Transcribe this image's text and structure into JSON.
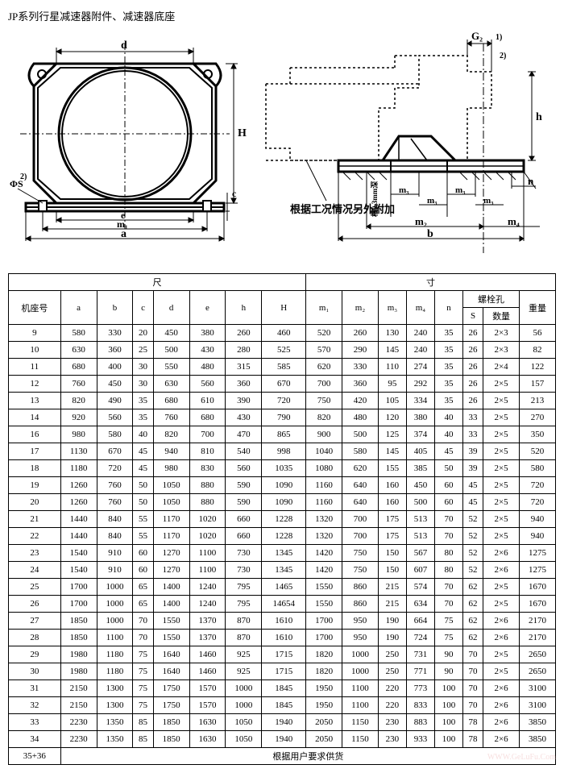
{
  "title": "JP系列行星减速器附件、减速器底座",
  "diagram_left": {
    "labels": {
      "d": "d",
      "H": "H",
      "c": "c",
      "e": "e",
      "m1": "m₁",
      "a": "a",
      "phi_s": "ΦS",
      "note2": "2)"
    },
    "dim_font": 13
  },
  "diagram_right": {
    "labels": {
      "G2": "G₂",
      "note1": "1)",
      "note2": "2)",
      "h": "h",
      "n": "n",
      "m3": "m₃",
      "m2": "m₂",
      "m4": "m₄",
      "b": "b",
      "cao": "槽0.3mm深",
      "annotation": "根据工况情况另外附加"
    },
    "dim_font": 13
  },
  "table": {
    "header_main": "尺",
    "header_main2": "寸",
    "cols": [
      "机座号",
      "a",
      "b",
      "c",
      "d",
      "e",
      "h",
      "H",
      "m₁",
      "m₂",
      "m₃",
      "m₄",
      "n",
      "S",
      "数量",
      "重量"
    ],
    "bolt_header": "螺栓孔",
    "groups": [
      [
        [
          "9",
          "580",
          "330",
          "20",
          "450",
          "380",
          "260",
          "460",
          "520",
          "260",
          "130",
          "240",
          "35",
          "26",
          "2×3",
          "56"
        ],
        [
          "10",
          "630",
          "360",
          "25",
          "500",
          "430",
          "280",
          "525",
          "570",
          "290",
          "145",
          "240",
          "35",
          "26",
          "2×3",
          "82"
        ],
        [
          "11",
          "680",
          "400",
          "30",
          "550",
          "480",
          "315",
          "585",
          "620",
          "330",
          "110",
          "274",
          "35",
          "26",
          "2×4",
          "122"
        ]
      ],
      [
        [
          "12",
          "760",
          "450",
          "30",
          "630",
          "560",
          "360",
          "670",
          "700",
          "360",
          "95",
          "292",
          "35",
          "26",
          "2×5",
          "157"
        ],
        [
          "13",
          "820",
          "490",
          "35",
          "680",
          "610",
          "390",
          "720",
          "750",
          "420",
          "105",
          "334",
          "35",
          "26",
          "2×5",
          "213"
        ],
        [
          "14",
          "920",
          "560",
          "35",
          "760",
          "680",
          "430",
          "790",
          "820",
          "480",
          "120",
          "380",
          "40",
          "33",
          "2×5",
          "270"
        ]
      ],
      [
        [
          "16",
          "980",
          "580",
          "40",
          "820",
          "700",
          "470",
          "865",
          "900",
          "500",
          "125",
          "374",
          "40",
          "33",
          "2×5",
          "350"
        ],
        [
          "17",
          "1130",
          "670",
          "45",
          "940",
          "810",
          "540",
          "998",
          "1040",
          "580",
          "145",
          "405",
          "45",
          "39",
          "2×5",
          "520"
        ],
        [
          "18",
          "1180",
          "720",
          "45",
          "980",
          "830",
          "560",
          "1035",
          "1080",
          "620",
          "155",
          "385",
          "50",
          "39",
          "2×5",
          "580"
        ]
      ],
      [
        [
          "19",
          "1260",
          "760",
          "50",
          "1050",
          "880",
          "590",
          "1090",
          "1160",
          "640",
          "160",
          "450",
          "60",
          "45",
          "2×5",
          "720"
        ],
        [
          "20",
          "1260",
          "760",
          "50",
          "1050",
          "880",
          "590",
          "1090",
          "1160",
          "640",
          "160",
          "500",
          "60",
          "45",
          "2×5",
          "720"
        ],
        [
          "21",
          "1440",
          "840",
          "55",
          "1170",
          "1020",
          "660",
          "1228",
          "1320",
          "700",
          "175",
          "513",
          "70",
          "52",
          "2×5",
          "940"
        ]
      ],
      [
        [
          "22",
          "1440",
          "840",
          "55",
          "1170",
          "1020",
          "660",
          "1228",
          "1320",
          "700",
          "175",
          "513",
          "70",
          "52",
          "2×5",
          "940"
        ],
        [
          "23",
          "1540",
          "910",
          "60",
          "1270",
          "1100",
          "730",
          "1345",
          "1420",
          "750",
          "150",
          "567",
          "80",
          "52",
          "2×6",
          "1275"
        ],
        [
          "24",
          "1540",
          "910",
          "60",
          "1270",
          "1100",
          "730",
          "1345",
          "1420",
          "750",
          "150",
          "607",
          "80",
          "52",
          "2×6",
          "1275"
        ]
      ],
      [
        [
          "25",
          "1700",
          "1000",
          "65",
          "1400",
          "1240",
          "795",
          "1465",
          "1550",
          "860",
          "215",
          "574",
          "70",
          "62",
          "2×5",
          "1670"
        ],
        [
          "26",
          "1700",
          "1000",
          "65",
          "1400",
          "1240",
          "795",
          "14654",
          "1550",
          "860",
          "215",
          "634",
          "70",
          "62",
          "2×5",
          "1670"
        ],
        [
          "27",
          "1850",
          "1000",
          "70",
          "1550",
          "1370",
          "870",
          "1610",
          "1700",
          "950",
          "190",
          "664",
          "75",
          "62",
          "2×6",
          "2170"
        ]
      ],
      [
        [
          "28",
          "1850",
          "1100",
          "70",
          "1550",
          "1370",
          "870",
          "1610",
          "1700",
          "950",
          "190",
          "724",
          "75",
          "62",
          "2×6",
          "2170"
        ],
        [
          "29",
          "1980",
          "1180",
          "75",
          "1640",
          "1460",
          "925",
          "1715",
          "1820",
          "1000",
          "250",
          "731",
          "90",
          "70",
          "2×5",
          "2650"
        ],
        [
          "30",
          "1980",
          "1180",
          "75",
          "1640",
          "1460",
          "925",
          "1715",
          "1820",
          "1000",
          "250",
          "771",
          "90",
          "70",
          "2×5",
          "2650"
        ]
      ],
      [
        [
          "31",
          "2150",
          "1300",
          "75",
          "1750",
          "1570",
          "1000",
          "1845",
          "1950",
          "1100",
          "220",
          "773",
          "100",
          "70",
          "2×6",
          "3100"
        ],
        [
          "32",
          "2150",
          "1300",
          "75",
          "1750",
          "1570",
          "1000",
          "1845",
          "1950",
          "1100",
          "220",
          "833",
          "100",
          "70",
          "2×6",
          "3100"
        ],
        [
          "33",
          "2230",
          "1350",
          "85",
          "1850",
          "1630",
          "1050",
          "1940",
          "2050",
          "1150",
          "230",
          "883",
          "100",
          "78",
          "2×6",
          "3850"
        ],
        [
          "34",
          "2230",
          "1350",
          "85",
          "1850",
          "1630",
          "1050",
          "1940",
          "2050",
          "1150",
          "230",
          "933",
          "100",
          "78",
          "2×6",
          "3850"
        ]
      ]
    ],
    "last_row_label": "35+36",
    "last_row_text": "根据用户要求供货"
  },
  "watermark": "WWW.GeLuFu.Com"
}
